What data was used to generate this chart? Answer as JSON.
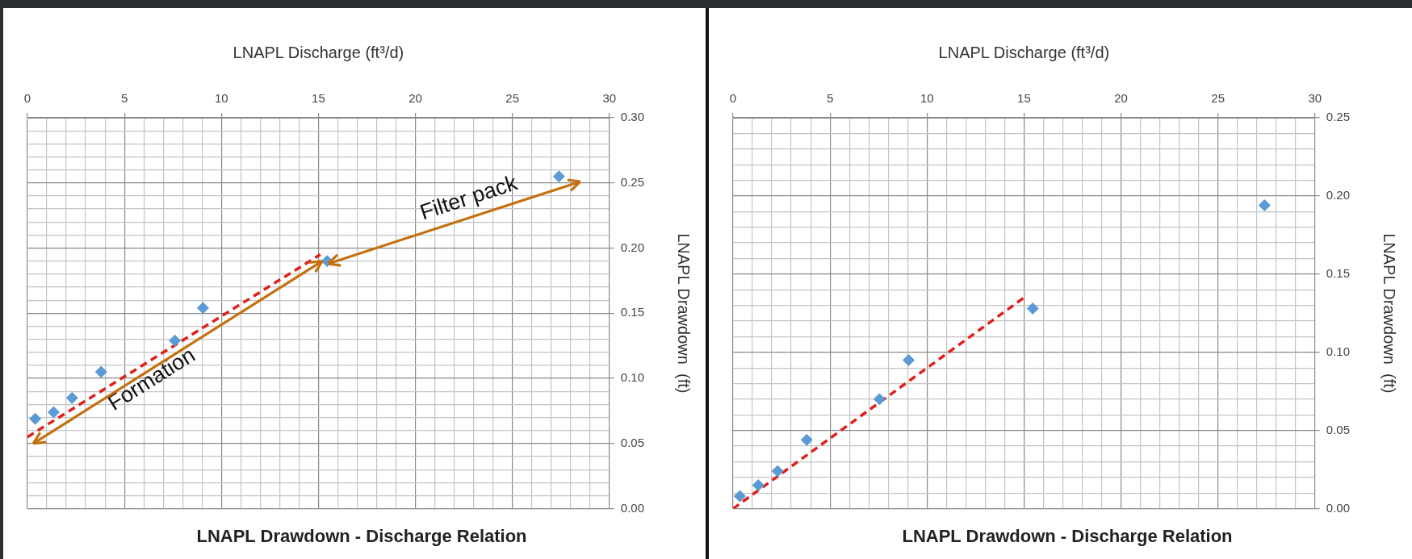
{
  "chart_data": [
    {
      "type": "scatter",
      "title": "LNAPL Drawdown - Discharge Relation",
      "xlabel": "LNAPL Discharge (ft³/d)",
      "ylabel": "LNAPL Drawdown  (ft)",
      "marker": "diamond",
      "grid": true,
      "legend": false,
      "xlim": [
        0,
        30
      ],
      "ylim": [
        0,
        0.3
      ],
      "xticks": [
        0,
        {
          "value": 1,
          "label": null
        },
        {
          "value": 2,
          "label": null
        },
        {
          "value": 3,
          "label": null
        },
        {
          "value": 4,
          "label": null
        },
        5,
        {
          "value": 6,
          "label": null
        },
        {
          "value": 7,
          "label": null
        },
        {
          "value": 8,
          "label": null
        },
        {
          "value": 9,
          "label": null
        },
        10,
        {
          "value": 11,
          "label": null
        },
        {
          "value": 12,
          "label": null
        },
        {
          "value": 13,
          "label": null
        },
        {
          "value": 14,
          "label": null
        },
        15,
        {
          "value": 16,
          "label": null
        },
        {
          "value": 17,
          "label": null
        },
        {
          "value": 18,
          "label": null
        },
        {
          "value": 19,
          "label": null
        },
        20,
        {
          "value": 21,
          "label": null
        },
        {
          "value": 22,
          "label": null
        },
        {
          "value": 23,
          "label": null
        },
        {
          "value": 24,
          "label": null
        },
        25,
        {
          "value": 26,
          "label": null
        },
        {
          "value": 27,
          "label": null
        },
        {
          "value": 28,
          "label": null
        },
        {
          "value": 29,
          "label": null
        },
        30
      ],
      "yticks": [
        {
          "value": 0,
          "label": "0.00"
        },
        {
          "value": 0.01,
          "label": null
        },
        {
          "value": 0.02,
          "label": null
        },
        {
          "value": 0.03,
          "label": null
        },
        {
          "value": 0.04,
          "label": null
        },
        {
          "value": 0.05,
          "label": "0.05"
        },
        {
          "value": 0.06,
          "label": null
        },
        {
          "value": 0.07,
          "label": null
        },
        {
          "value": 0.08,
          "label": null
        },
        {
          "value": 0.09,
          "label": null
        },
        {
          "value": 0.1,
          "label": "0.10"
        },
        {
          "value": 0.11,
          "label": null
        },
        {
          "value": 0.12,
          "label": null
        },
        {
          "value": 0.13,
          "label": null
        },
        {
          "value": 0.14,
          "label": null
        },
        {
          "value": 0.15,
          "label": "0.15"
        },
        {
          "value": 0.16,
          "label": null
        },
        {
          "value": 0.17,
          "label": null
        },
        {
          "value": 0.18,
          "label": null
        },
        {
          "value": 0.19,
          "label": null
        },
        {
          "value": 0.2,
          "label": "0.20"
        },
        {
          "value": 0.21,
          "label": null
        },
        {
          "value": 0.22,
          "label": null
        },
        {
          "value": 0.23,
          "label": null
        },
        {
          "value": 0.24,
          "label": null
        },
        {
          "value": 0.25,
          "label": "0.25"
        },
        {
          "value": 0.26,
          "label": null
        },
        {
          "value": 0.27,
          "label": null
        },
        {
          "value": 0.28,
          "label": null
        },
        {
          "value": 0.29,
          "label": null
        },
        {
          "value": 0.3,
          "label": "0.30"
        }
      ],
      "series": [
        {
          "color": "#5b9bd5",
          "x": [
            0.4,
            1.35,
            2.3,
            3.8,
            7.6,
            9.05,
            15.45,
            27.4
          ],
          "values": [
            0.069,
            0.074,
            0.085,
            0.105,
            0.129,
            0.154,
            0.19,
            0.255
          ]
        },
        {
          "type": "line",
          "color": "#e0201a",
          "marker": "none",
          "line_style": "dashed",
          "x": [
            0,
            15.1
          ],
          "values": [
            0.055,
            0.195
          ]
        }
      ],
      "annotations": [
        "Formation",
        "Filter pack"
      ]
    },
    {
      "type": "scatter",
      "title": "LNAPL Drawdown - Discharge Relation",
      "xlabel": "LNAPL Discharge (ft³/d)",
      "ylabel": "LNAPL Drawdown  (ft)",
      "marker": "diamond",
      "grid": true,
      "legend": false,
      "xlim": [
        0,
        30
      ],
      "ylim": [
        0,
        0.25
      ],
      "xticks": [
        0,
        {
          "value": 1,
          "label": null
        },
        {
          "value": 2,
          "label": null
        },
        {
          "value": 3,
          "label": null
        },
        {
          "value": 4,
          "label": null
        },
        5,
        {
          "value": 6,
          "label": null
        },
        {
          "value": 7,
          "label": null
        },
        {
          "value": 8,
          "label": null
        },
        {
          "value": 9,
          "label": null
        },
        10,
        {
          "value": 11,
          "label": null
        },
        {
          "value": 12,
          "label": null
        },
        {
          "value": 13,
          "label": null
        },
        {
          "value": 14,
          "label": null
        },
        15,
        {
          "value": 16,
          "label": null
        },
        {
          "value": 17,
          "label": null
        },
        {
          "value": 18,
          "label": null
        },
        {
          "value": 19,
          "label": null
        },
        20,
        {
          "value": 21,
          "label": null
        },
        {
          "value": 22,
          "label": null
        },
        {
          "value": 23,
          "label": null
        },
        {
          "value": 24,
          "label": null
        },
        25,
        {
          "value": 26,
          "label": null
        },
        {
          "value": 27,
          "label": null
        },
        {
          "value": 28,
          "label": null
        },
        {
          "value": 29,
          "label": null
        },
        30
      ],
      "yticks": [
        {
          "value": 0,
          "label": "0.00"
        },
        {
          "value": 0.01,
          "label": null
        },
        {
          "value": 0.02,
          "label": null
        },
        {
          "value": 0.03,
          "label": null
        },
        {
          "value": 0.04,
          "label": null
        },
        {
          "value": 0.05,
          "label": "0.05"
        },
        {
          "value": 0.06,
          "label": null
        },
        {
          "value": 0.07,
          "label": null
        },
        {
          "value": 0.08,
          "label": null
        },
        {
          "value": 0.09,
          "label": null
        },
        {
          "value": 0.1,
          "label": "0.10"
        },
        {
          "value": 0.11,
          "label": null
        },
        {
          "value": 0.12,
          "label": null
        },
        {
          "value": 0.13,
          "label": null
        },
        {
          "value": 0.14,
          "label": null
        },
        {
          "value": 0.15,
          "label": "0.15"
        },
        {
          "value": 0.16,
          "label": null
        },
        {
          "value": 0.17,
          "label": null
        },
        {
          "value": 0.18,
          "label": null
        },
        {
          "value": 0.19,
          "label": null
        },
        {
          "value": 0.2,
          "label": "0.20"
        },
        {
          "value": 0.21,
          "label": null
        },
        {
          "value": 0.22,
          "label": null
        },
        {
          "value": 0.23,
          "label": null
        },
        {
          "value": 0.24,
          "label": null
        },
        {
          "value": 0.25,
          "label": "0.25"
        }
      ],
      "series": [
        {
          "color": "#5b9bd5",
          "x": [
            0.35,
            1.3,
            2.3,
            3.8,
            7.55,
            9.05,
            15.45,
            27.4
          ],
          "values": [
            0.008,
            0.015,
            0.024,
            0.044,
            0.07,
            0.095,
            0.128,
            0.194
          ]
        },
        {
          "type": "line",
          "color": "#e0201a",
          "marker": "none",
          "line_style": "dashed",
          "x": [
            0,
            15
          ],
          "values": [
            0,
            0.135
          ]
        }
      ]
    }
  ]
}
